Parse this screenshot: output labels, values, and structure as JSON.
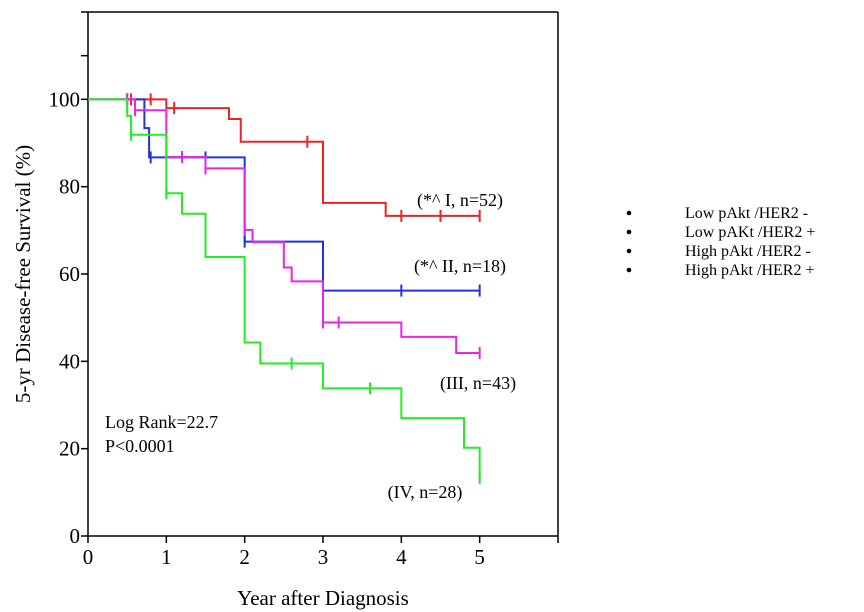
{
  "chart_data": {
    "type": "line",
    "subtype": "kaplan-meier step curves",
    "xlabel": "Year after Diagnosis",
    "ylabel": "5-yr Disease-free Survival (%)",
    "xlim": [
      0,
      6
    ],
    "ylim": [
      0,
      120
    ],
    "x_ticks": [
      0,
      1,
      2,
      3,
      4,
      5
    ],
    "y_ticks": [
      0,
      20,
      40,
      60,
      80,
      100
    ],
    "grid": false,
    "legend_position": "right",
    "statistics": [
      "Log Rank=22.7",
      "P<0.0001"
    ],
    "series": [
      {
        "legend": "Low pAkt /HER2 -",
        "label": "(*^ I, n=52)",
        "color": "#ee2222",
        "steps": [
          [
            0,
            100
          ],
          [
            1.0,
            98
          ],
          [
            1.8,
            95.5
          ],
          [
            1.95,
            90.3
          ],
          [
            3.0,
            76.3
          ],
          [
            3.8,
            73.3
          ],
          [
            5.0,
            73.3
          ]
        ],
        "censors": [
          [
            0.55,
            100
          ],
          [
            0.8,
            100
          ],
          [
            1.1,
            98
          ],
          [
            2.8,
            90.3
          ],
          [
            4.0,
            73.3
          ],
          [
            4.5,
            73.3
          ],
          [
            5.0,
            73.3
          ]
        ]
      },
      {
        "legend": "Low pAKt /HER2 +",
        "label": "(*^ II, n=18)",
        "color": "#2233dd",
        "steps": [
          [
            0,
            100
          ],
          [
            0.72,
            93.4
          ],
          [
            0.78,
            86.7
          ],
          [
            2.0,
            67.4
          ],
          [
            3.0,
            56.2
          ],
          [
            5.0,
            56.2
          ]
        ],
        "censors": [
          [
            0.5,
            100
          ],
          [
            0.8,
            86.7
          ],
          [
            1.5,
            86.7
          ],
          [
            2.0,
            67.4
          ],
          [
            4.0,
            56.2
          ],
          [
            5.0,
            56.2
          ]
        ]
      },
      {
        "legend": "High pAkt /HER2 -",
        "label": "(III, n=43)",
        "color": "#ee22ee",
        "steps": [
          [
            0,
            100
          ],
          [
            0.6,
            97.5
          ],
          [
            1.0,
            86.8
          ],
          [
            1.5,
            84.2
          ],
          [
            2.0,
            70.1
          ],
          [
            2.1,
            67.3
          ],
          [
            2.5,
            61.5
          ],
          [
            2.6,
            58.3
          ],
          [
            3.0,
            48.9
          ],
          [
            4.0,
            45.6
          ],
          [
            4.7,
            41.9
          ],
          [
            5.0,
            41.9
          ]
        ],
        "censors": [
          [
            0.5,
            100
          ],
          [
            0.6,
            97.5
          ],
          [
            1.2,
            86.8
          ],
          [
            1.5,
            84.2
          ],
          [
            2.0,
            70.1
          ],
          [
            3.0,
            48.9
          ],
          [
            3.2,
            48.9
          ],
          [
            5.0,
            41.9
          ]
        ]
      },
      {
        "legend": "High pAkt /HER2 +",
        "label": "(IV, n=28)",
        "color": "#22ee22",
        "steps": [
          [
            0,
            100
          ],
          [
            0.5,
            96.2
          ],
          [
            0.55,
            91.9
          ],
          [
            1.0,
            78.5
          ],
          [
            1.2,
            73.8
          ],
          [
            1.5,
            63.9
          ],
          [
            2.0,
            44.3
          ],
          [
            2.2,
            39.5
          ],
          [
            3.0,
            33.8
          ],
          [
            4.0,
            27.0
          ],
          [
            4.8,
            20.2
          ],
          [
            5.0,
            13.3
          ]
        ],
        "censors": [
          [
            0.55,
            91.9
          ],
          [
            1.0,
            78.5
          ],
          [
            2.6,
            39.5
          ],
          [
            3.6,
            33.8
          ],
          [
            5.0,
            13.3
          ]
        ]
      }
    ]
  }
}
